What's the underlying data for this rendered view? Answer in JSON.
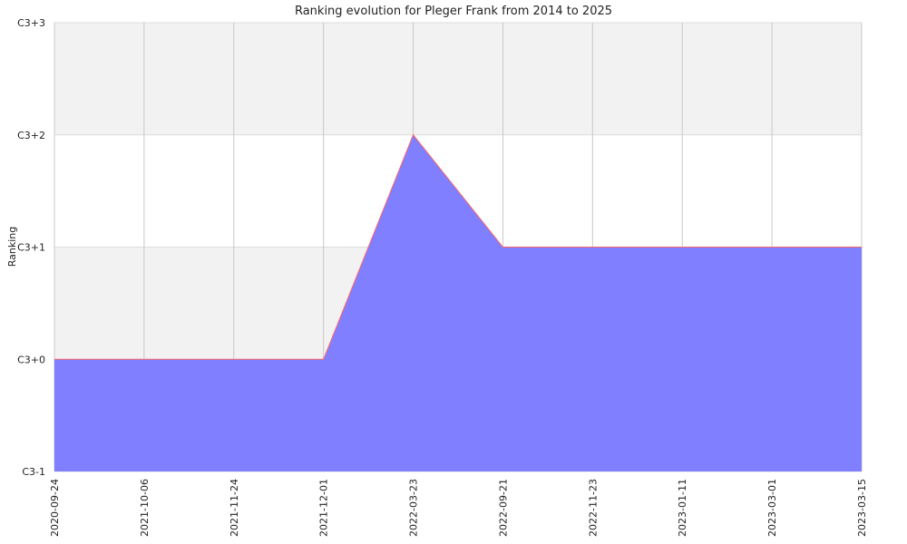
{
  "chart_data": {
    "type": "area",
    "title": "Ranking evolution for Pleger Frank from 2014 to 2025",
    "xlabel": "",
    "ylabel": "Ranking",
    "x": [
      "2020-09-24",
      "2021-10-06",
      "2021-11-24",
      "2021-12-01",
      "2022-03-23",
      "2022-09-21",
      "2022-11-23",
      "2023-01-11",
      "2023-03-01",
      "2023-03-15"
    ],
    "y_ticks": [
      "C3-1",
      "C3+0",
      "C3+1",
      "C3+2",
      "C3+3"
    ],
    "ylim": [
      "C3-1",
      "C3+3"
    ],
    "series": [
      {
        "values": [
          "C3+0",
          "C3+0",
          "C3+0",
          "C3+0",
          "C3+2",
          "C3+1",
          "C3+1",
          "C3+1",
          "C3+1",
          "C3+1"
        ]
      }
    ],
    "grid": true,
    "colors": {
      "fill": "#7f7fff",
      "line": "#ff6666",
      "band": "#f2f2f2",
      "grid": "#c8c8c8"
    }
  }
}
